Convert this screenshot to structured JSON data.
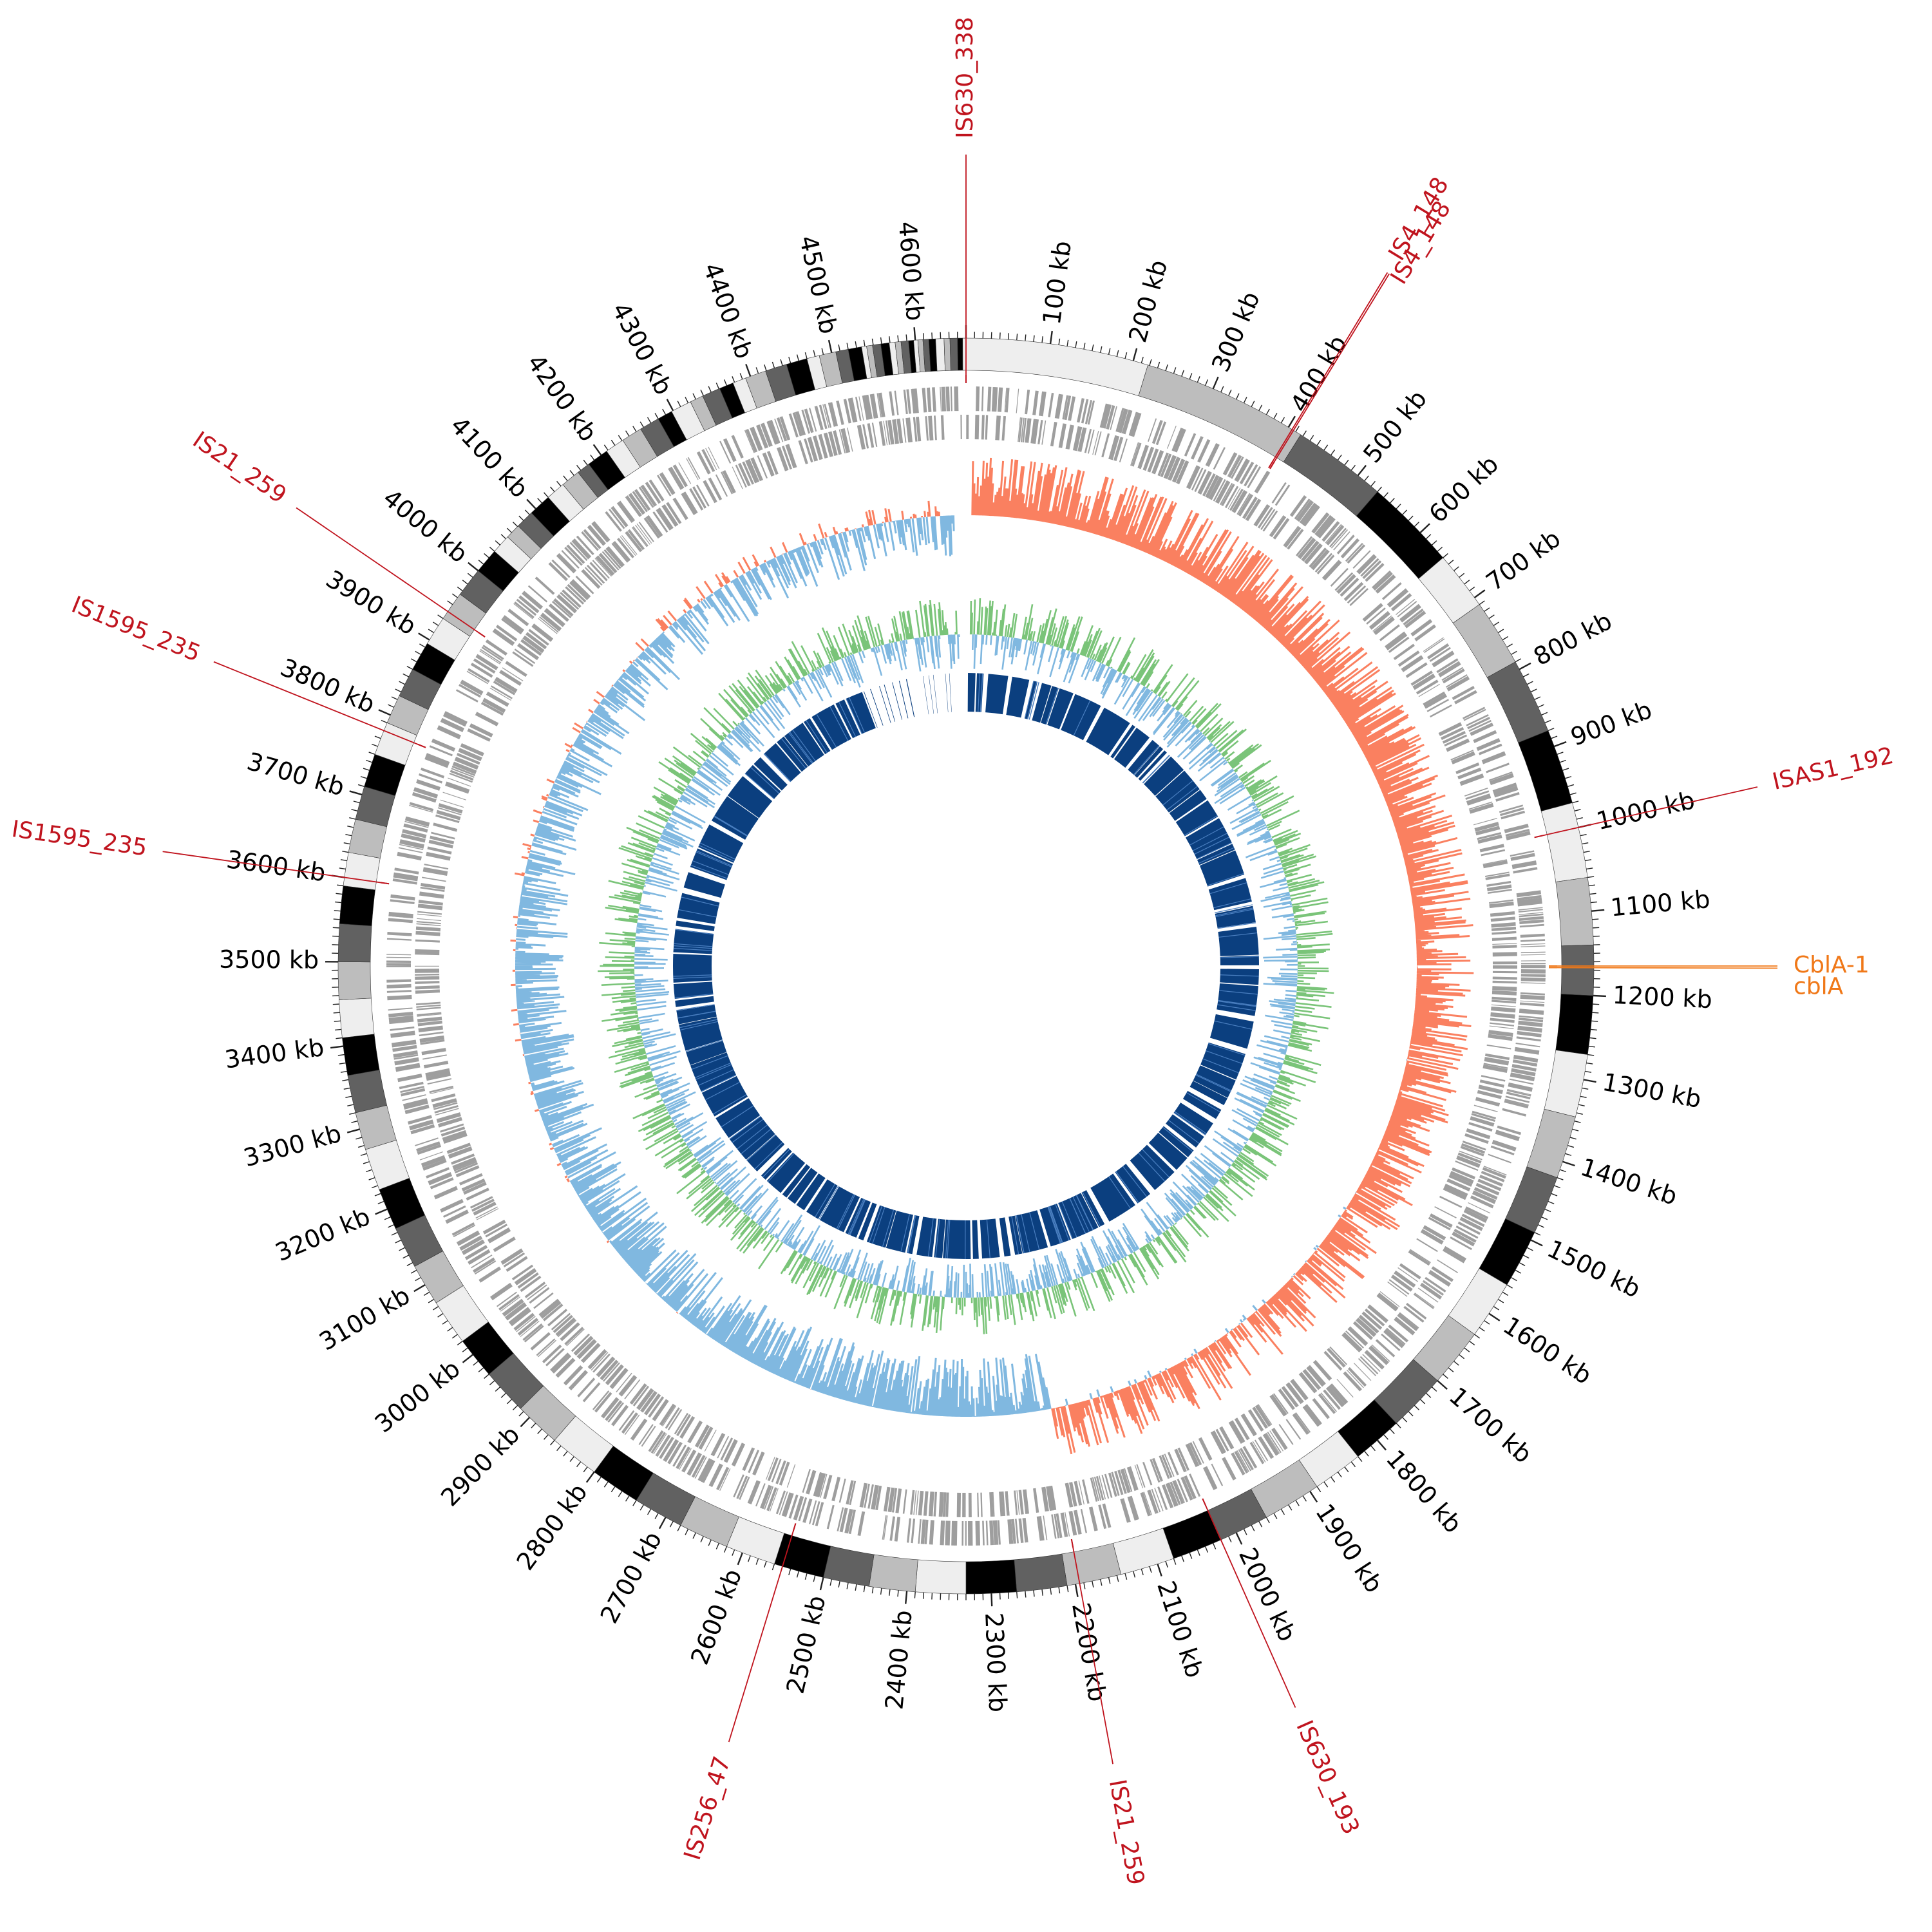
{
  "genome": {
    "length_kb": 4660,
    "tick_unit": "kb",
    "tick_labels": [
      "100 kb",
      "200 kb",
      "300 kb",
      "400 kb",
      "500 kb",
      "600 kb",
      "700 kb",
      "800 kb",
      "900 kb",
      "1000 kb",
      "1100 kb",
      "1200 kb",
      "1300 kb",
      "1400 kb",
      "1500 kb",
      "1600 kb",
      "1700 kb",
      "1800 kb",
      "1900 kb",
      "2000 kb",
      "2100 kb",
      "2200 kb",
      "2300 kb",
      "2400 kb",
      "2500 kb",
      "2600 kb",
      "2700 kb",
      "2800 kb",
      "2900 kb",
      "3000 kb",
      "3100 kb",
      "3200 kb",
      "3300 kb",
      "3400 kb",
      "3500 kb",
      "3600 kb",
      "3700 kb",
      "3800 kb",
      "3900 kb",
      "4000 kb",
      "4100 kb",
      "4200 kb",
      "4300 kb",
      "4400 kb",
      "4500 kb",
      "4600 kb"
    ],
    "tick_positions_kb": [
      100,
      200,
      300,
      400,
      500,
      600,
      700,
      800,
      900,
      1000,
      1100,
      1200,
      1300,
      1400,
      1500,
      1600,
      1700,
      1800,
      1900,
      2000,
      2100,
      2200,
      2300,
      2400,
      2500,
      2600,
      2700,
      2800,
      2900,
      3000,
      3100,
      3200,
      3300,
      3400,
      3500,
      3600,
      3700,
      3800,
      3900,
      4000,
      4100,
      4200,
      4300,
      4400,
      4500,
      4600
    ]
  },
  "annotations": [
    {
      "label": "IS630_338",
      "position_kb": 0,
      "color": "#c0141e"
    },
    {
      "label": "IS4_148",
      "position_kb": 405,
      "color": "#c0141e"
    },
    {
      "label": "IS4_148",
      "position_kb": 407,
      "color": "#c0141e"
    },
    {
      "label": "ISAS1_192",
      "position_kb": 1000,
      "color": "#c0141e"
    },
    {
      "label": "CblA-1",
      "position_kb": 1165,
      "color": "#f07818"
    },
    {
      "label": "cblA",
      "position_kb": 1167,
      "color": "#f07818"
    },
    {
      "label": "IS630_193",
      "position_kb": 2020,
      "color": "#c0141e"
    },
    {
      "label": "IS21_259",
      "position_kb": 2195,
      "color": "#c0141e"
    },
    {
      "label": "IS256_47",
      "position_kb": 2550,
      "color": "#c0141e"
    },
    {
      "label": "IS1595_235",
      "position_kb": 3600,
      "color": "#c0141e"
    },
    {
      "label": "IS1595_235",
      "position_kb": 3780,
      "color": "#c0141e"
    },
    {
      "label": "IS21_259",
      "position_kb": 3940,
      "color": "#c0141e"
    }
  ],
  "tracks": {
    "contig_shades": [
      "#eeeeee",
      "#bdbdbd",
      "#616161",
      "#000000"
    ],
    "cds_color": "#9e9e9e",
    "gc_skew_positive": "#fa8060",
    "gc_skew_negative": "#80b8e0",
    "gc_content_positive": "#7ac479",
    "gc_content_negative": "#80b8e0",
    "core_blocks_color": "#0b3f7f",
    "core_gap_start_kb": 4520,
    "core_gap_end_kb": 4660
  }
}
